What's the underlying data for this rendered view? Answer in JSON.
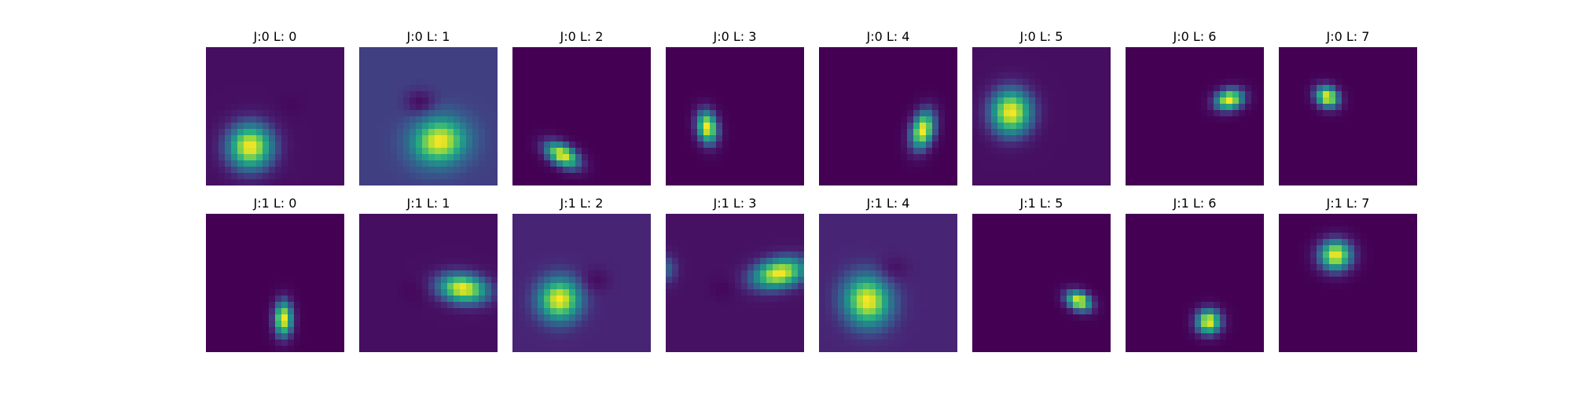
{
  "chart_data": {
    "type": "heatmap",
    "colormap": "viridis",
    "colors": {
      "low": "#440154",
      "mid": "#21918c",
      "high": "#fde725"
    },
    "rows": 2,
    "cols": 8,
    "panels": [
      {
        "title": "J:0 L: 0",
        "background": 0.05,
        "blob": {
          "cx": 0.32,
          "cy": 0.72,
          "sx": 0.11,
          "sy": 0.11,
          "angle": 0
        },
        "shadow": {
          "cx": 0.62,
          "cy": 0.42,
          "strength": 0.02
        }
      },
      {
        "title": "J:0 L: 1",
        "background": 0.2,
        "blob": {
          "cx": 0.58,
          "cy": 0.68,
          "sx": 0.13,
          "sy": 0.11,
          "angle": -10
        },
        "shadow": {
          "cx": 0.44,
          "cy": 0.4,
          "strength": 0.16
        }
      },
      {
        "title": "J:0 L: 2",
        "background": 0.0,
        "blob": {
          "cx": 0.36,
          "cy": 0.78,
          "sx": 0.09,
          "sy": 0.05,
          "angle": 30
        },
        "shadow": null
      },
      {
        "title": "J:0 L: 3",
        "background": 0.0,
        "blob": {
          "cx": 0.3,
          "cy": 0.58,
          "sx": 0.05,
          "sy": 0.08,
          "angle": -10
        },
        "shadow": null
      },
      {
        "title": "J:0 L: 4",
        "background": 0.0,
        "blob": {
          "cx": 0.75,
          "cy": 0.6,
          "sx": 0.055,
          "sy": 0.095,
          "angle": 15
        },
        "shadow": null
      },
      {
        "title": "J:0 L: 5",
        "background": 0.05,
        "blob": {
          "cx": 0.28,
          "cy": 0.47,
          "sx": 0.1,
          "sy": 0.11,
          "angle": 0
        },
        "shadow": null
      },
      {
        "title": "J:0 L: 6",
        "background": 0.0,
        "blob": {
          "cx": 0.75,
          "cy": 0.38,
          "sx": 0.07,
          "sy": 0.05,
          "angle": -15
        },
        "shadow": null
      },
      {
        "title": "J:0 L: 7",
        "background": 0.0,
        "blob": {
          "cx": 0.35,
          "cy": 0.36,
          "sx": 0.06,
          "sy": 0.05,
          "angle": 35
        },
        "shadow": null
      },
      {
        "title": "J:1 L: 0",
        "background": 0.0,
        "blob": {
          "cx": 0.56,
          "cy": 0.76,
          "sx": 0.045,
          "sy": 0.085,
          "angle": 0
        },
        "shadow": null
      },
      {
        "title": "J:1 L: 1",
        "background": 0.05,
        "blob": {
          "cx": 0.75,
          "cy": 0.54,
          "sx": 0.12,
          "sy": 0.07,
          "angle": 8
        },
        "shadow": {
          "cx": 0.4,
          "cy": 0.56,
          "strength": 0.03
        }
      },
      {
        "title": "J:1 L: 2",
        "background": 0.13,
        "blob": {
          "cx": 0.34,
          "cy": 0.62,
          "sx": 0.1,
          "sy": 0.1,
          "angle": 0
        },
        "shadow": {
          "cx": 0.6,
          "cy": 0.48,
          "strength": 0.09
        }
      },
      {
        "title": "J:1 L: 3",
        "background": 0.06,
        "blob": {
          "cx": 0.82,
          "cy": 0.43,
          "sx": 0.13,
          "sy": 0.07,
          "angle": -12
        },
        "shadow": {
          "cx": 0.42,
          "cy": 0.54,
          "strength": 0.04
        },
        "extra": {
          "cx": 0.01,
          "cy": 0.4,
          "sx": 0.05,
          "sy": 0.07,
          "amp": 0.25
        }
      },
      {
        "title": "J:1 L: 4",
        "background": 0.13,
        "blob": {
          "cx": 0.35,
          "cy": 0.63,
          "sx": 0.11,
          "sy": 0.12,
          "angle": -20
        },
        "shadow": {
          "cx": 0.54,
          "cy": 0.4,
          "strength": 0.08
        }
      },
      {
        "title": "J:1 L: 5",
        "background": 0.0,
        "blob": {
          "cx": 0.77,
          "cy": 0.63,
          "sx": 0.065,
          "sy": 0.045,
          "angle": 25
        },
        "shadow": null
      },
      {
        "title": "J:1 L: 6",
        "background": 0.0,
        "blob": {
          "cx": 0.6,
          "cy": 0.78,
          "sx": 0.06,
          "sy": 0.06,
          "angle": 0
        },
        "shadow": null
      },
      {
        "title": "J:1 L: 7",
        "background": 0.0,
        "blob": {
          "cx": 0.41,
          "cy": 0.3,
          "sx": 0.08,
          "sy": 0.075,
          "angle": 0
        },
        "shadow": null
      }
    ]
  }
}
